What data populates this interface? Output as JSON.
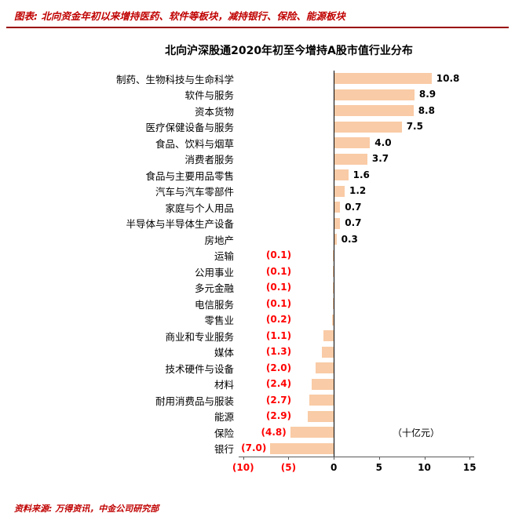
{
  "header": {
    "caption": "图表: 北向资金年初以来增持医药、软件等板块，减持银行、保险、能源板块"
  },
  "footer": {
    "source": "资料来源: 万得资讯，中金公司研究部"
  },
  "chart_data": {
    "type": "bar",
    "orientation": "horizontal",
    "title": "北向沪深股通2020年初至今增持A股市值行业分布",
    "unit_label": "（十亿元）",
    "categories": [
      "制药、生物科技与生命科学",
      "软件与服务",
      "资本货物",
      "医疗保健设备与服务",
      "食品、饮料与烟草",
      "消费者服务",
      "食品与主要用品零售",
      "汽车与汽车零部件",
      "家庭与个人用品",
      "半导体与半导体生产设备",
      "房地产",
      "运输",
      "公用事业",
      "多元金融",
      "电信服务",
      "零售业",
      "商业和专业服务",
      "媒体",
      "技术硬件与设备",
      "材料",
      "耐用消费品与服装",
      "能源",
      "保险",
      "银行"
    ],
    "values": [
      10.8,
      8.9,
      8.8,
      7.5,
      4.0,
      3.7,
      1.6,
      1.2,
      0.7,
      0.7,
      0.3,
      -0.1,
      -0.1,
      -0.1,
      -0.1,
      -0.2,
      -1.1,
      -1.3,
      -2.0,
      -2.4,
      -2.7,
      -2.9,
      -4.8,
      -7.0
    ],
    "value_labels": [
      "10.8",
      "8.9",
      "8.8",
      "7.5",
      "4.0",
      "3.7",
      "1.6",
      "1.2",
      "0.7",
      "0.7",
      "0.3",
      "(0.1)",
      "(0.1)",
      "(0.1)",
      "(0.1)",
      "(0.2)",
      "(1.1)",
      "(1.3)",
      "(2.0)",
      "(2.4)",
      "(2.7)",
      "(2.9)",
      "(4.8)",
      "(7.0)"
    ],
    "x_ticks": [
      {
        "value": -10,
        "label": "(10)"
      },
      {
        "value": -5,
        "label": "(5)"
      },
      {
        "value": 0,
        "label": "0"
      },
      {
        "value": 5,
        "label": "5"
      },
      {
        "value": 10,
        "label": "10"
      },
      {
        "value": 15,
        "label": "15"
      }
    ],
    "xlim": [
      -10.5,
      15.5
    ],
    "grid": false,
    "legend": "none",
    "bar_color": "#F9CBA6",
    "positive_label_color": "#000000",
    "negative_label_color": "#FF0000",
    "axis_color": "#595959"
  }
}
